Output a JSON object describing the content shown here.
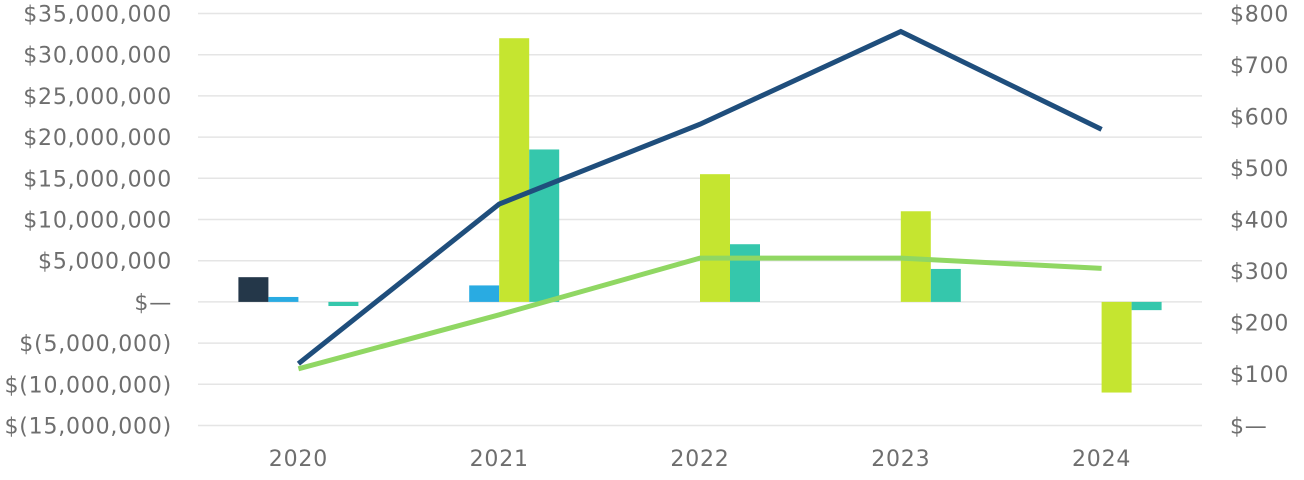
{
  "chart_data": {
    "type": "combo-bar-line",
    "title": "",
    "xlabel": "",
    "ylabel_left": "",
    "ylabel_right": "",
    "legend": "none",
    "grid": true,
    "categories": [
      "2020",
      "2021",
      "2022",
      "2023",
      "2024"
    ],
    "bar_series": [
      {
        "name": "navy-bars",
        "axis": "left",
        "color": "#243749",
        "values": [
          3000000,
          0,
          0,
          0,
          0
        ]
      },
      {
        "name": "blue-bars",
        "axis": "left",
        "color": "#29abe2",
        "values": [
          600000,
          2000000,
          0,
          0,
          0
        ]
      },
      {
        "name": "lime-bars",
        "axis": "left",
        "color": "#c5e530",
        "values": [
          0,
          32000000,
          15500000,
          11000000,
          -11000000
        ]
      },
      {
        "name": "teal-bars",
        "axis": "left",
        "color": "#35c7ac",
        "values": [
          -500000,
          18500000,
          7000000,
          4000000,
          -1000000
        ]
      }
    ],
    "line_series": [
      {
        "name": "navy-line",
        "axis": "right",
        "color": "#1f4e7c",
        "values": [
          120,
          430,
          585,
          765,
          575
        ]
      },
      {
        "name": "green-line",
        "axis": "right",
        "color": "#90d763",
        "values": [
          110,
          215,
          325,
          325,
          305
        ]
      }
    ],
    "left_axis": {
      "min": -15000000,
      "max": 35000000,
      "tick_step": 5000000,
      "ticks": [
        {
          "label": "$35,000,000",
          "value": 35000000
        },
        {
          "label": "$30,000,000",
          "value": 30000000
        },
        {
          "label": "$25,000,000",
          "value": 25000000
        },
        {
          "label": "$20,000,000",
          "value": 20000000
        },
        {
          "label": "$15,000,000",
          "value": 15000000
        },
        {
          "label": "$10,000,000",
          "value": 10000000
        },
        {
          "label": "$5,000,000",
          "value": 5000000
        },
        {
          "label": "$—",
          "value": 0
        },
        {
          "label": "$(5,000,000)",
          "value": -5000000
        },
        {
          "label": "$(10,000,000)",
          "value": -10000000
        },
        {
          "label": "$(15,000,000)",
          "value": -15000000
        }
      ]
    },
    "right_axis": {
      "min": 0,
      "max": 800,
      "tick_step": 100,
      "ticks": [
        {
          "label": "$800",
          "value": 800
        },
        {
          "label": "$700",
          "value": 700
        },
        {
          "label": "$600",
          "value": 600
        },
        {
          "label": "$500",
          "value": 500
        },
        {
          "label": "$400",
          "value": 400
        },
        {
          "label": "$300",
          "value": 300
        },
        {
          "label": "$200",
          "value": 200
        },
        {
          "label": "$100",
          "value": 100
        },
        {
          "label": "$—",
          "value": 0
        }
      ]
    },
    "colors": {
      "gridline": "#e5e5e5",
      "axis_label": "#6e6e6e",
      "background": "#ffffff"
    }
  }
}
